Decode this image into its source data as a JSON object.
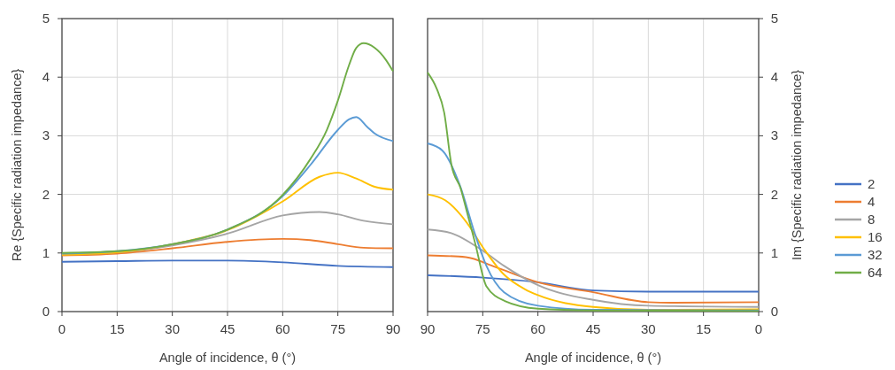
{
  "chart_data": [
    {
      "type": "line",
      "xlabel": "Angle of incidence, θ (°)",
      "ylabel": "Re {Specific radiation impedance}",
      "xlim": [
        0,
        90
      ],
      "xticks": [
        0,
        15,
        30,
        45,
        60,
        75,
        90
      ],
      "ylim": [
        0,
        5
      ],
      "yticks": [
        0,
        1,
        2,
        3,
        4,
        5
      ],
      "grid": true,
      "legend": false,
      "marker": "none",
      "line_style": "solid",
      "series": [
        {
          "color": "#4472c4",
          "x": [
            0,
            15,
            30,
            45,
            60,
            75,
            90
          ],
          "values": [
            0.85,
            0.86,
            0.87,
            0.87,
            0.84,
            0.78,
            0.76
          ]
        },
        {
          "color": "#ed7d31",
          "x": [
            0,
            15,
            30,
            45,
            60,
            67.5,
            75,
            82,
            90
          ],
          "values": [
            0.96,
            0.99,
            1.08,
            1.19,
            1.24,
            1.22,
            1.15,
            1.09,
            1.08
          ]
        },
        {
          "color": "#a5a5a5",
          "x": [
            0,
            15,
            30,
            45,
            60,
            70,
            75,
            82,
            90
          ],
          "values": [
            0.98,
            1.01,
            1.13,
            1.33,
            1.64,
            1.7,
            1.66,
            1.55,
            1.49
          ]
        },
        {
          "color": "#ffc000",
          "x": [
            0,
            15,
            30,
            45,
            60,
            70,
            75,
            80,
            85,
            90
          ],
          "values": [
            0.97,
            1.01,
            1.15,
            1.39,
            1.88,
            2.3,
            2.37,
            2.27,
            2.13,
            2.08
          ]
        },
        {
          "color": "#5b9bd5",
          "x": [
            0,
            15,
            30,
            45,
            60,
            67.5,
            75,
            78,
            80,
            83,
            85,
            90
          ],
          "values": [
            0.99,
            1.03,
            1.15,
            1.4,
            1.97,
            2.5,
            3.1,
            3.28,
            3.32,
            3.15,
            3.04,
            2.91
          ]
        },
        {
          "color": "#70ad47",
          "x": [
            0,
            15,
            30,
            45,
            60,
            67.5,
            72,
            75,
            78,
            80,
            82,
            85,
            88,
            90
          ],
          "values": [
            1.0,
            1.03,
            1.15,
            1.4,
            1.99,
            2.6,
            3.1,
            3.6,
            4.2,
            4.5,
            4.58,
            4.5,
            4.3,
            4.1
          ]
        }
      ]
    },
    {
      "type": "line",
      "xlabel": "Angle of incidence, θ (°)",
      "y2label": "Im {Specific radiation impedance}",
      "xlim": [
        90,
        0
      ],
      "xticks": [
        90,
        75,
        60,
        45,
        30,
        15,
        0
      ],
      "y2lim": [
        0,
        5
      ],
      "y2ticks": [
        0,
        1,
        2,
        3,
        4,
        5
      ],
      "grid": true,
      "legend": "right",
      "marker": "none",
      "line_style": "solid",
      "series": [
        {
          "name": "2",
          "color": "#4472c4",
          "axis": "y2",
          "x": [
            90,
            75,
            60,
            45,
            30,
            0
          ],
          "values": [
            0.62,
            0.58,
            0.5,
            0.36,
            0.34,
            0.34
          ]
        },
        {
          "name": "4",
          "color": "#ed7d31",
          "axis": "y2",
          "x": [
            90,
            79.6,
            71.6,
            60,
            45,
            30,
            23.5,
            0
          ],
          "values": [
            0.96,
            0.93,
            0.76,
            0.5,
            0.33,
            0.16,
            0.15,
            0.16
          ]
        },
        {
          "name": "8",
          "color": "#a5a5a5",
          "axis": "y2",
          "x": [
            90,
            83.6,
            74.8,
            69.2,
            60,
            45,
            30,
            0
          ],
          "values": [
            1.4,
            1.34,
            1.03,
            0.78,
            0.45,
            0.2,
            0.1,
            0.08
          ]
        },
        {
          "name": "16",
          "color": "#ffc000",
          "axis": "y2",
          "x": [
            90,
            85.2,
            79.6,
            74.8,
            69.2,
            63.5,
            60,
            45,
            30,
            0
          ],
          "values": [
            2.0,
            1.9,
            1.54,
            1.08,
            0.63,
            0.38,
            0.28,
            0.08,
            0.03,
            0.04
          ]
        },
        {
          "name": "32",
          "color": "#5b9bd5",
          "axis": "y2",
          "x": [
            90,
            86,
            81.2,
            77.2,
            74,
            69.2,
            60,
            45,
            0
          ],
          "values": [
            2.87,
            2.75,
            2.15,
            1.34,
            0.78,
            0.33,
            0.1,
            0.03,
            0.02
          ]
        },
        {
          "name": "64",
          "color": "#70ad47",
          "axis": "y2",
          "x": [
            90,
            87.5,
            85.5,
            83.5,
            81,
            79.5,
            77,
            74,
            69,
            60,
            45,
            0
          ],
          "values": [
            4.08,
            3.8,
            3.4,
            2.5,
            2.1,
            1.75,
            1.15,
            0.43,
            0.18,
            0.05,
            0.02,
            0.01
          ]
        }
      ]
    }
  ]
}
